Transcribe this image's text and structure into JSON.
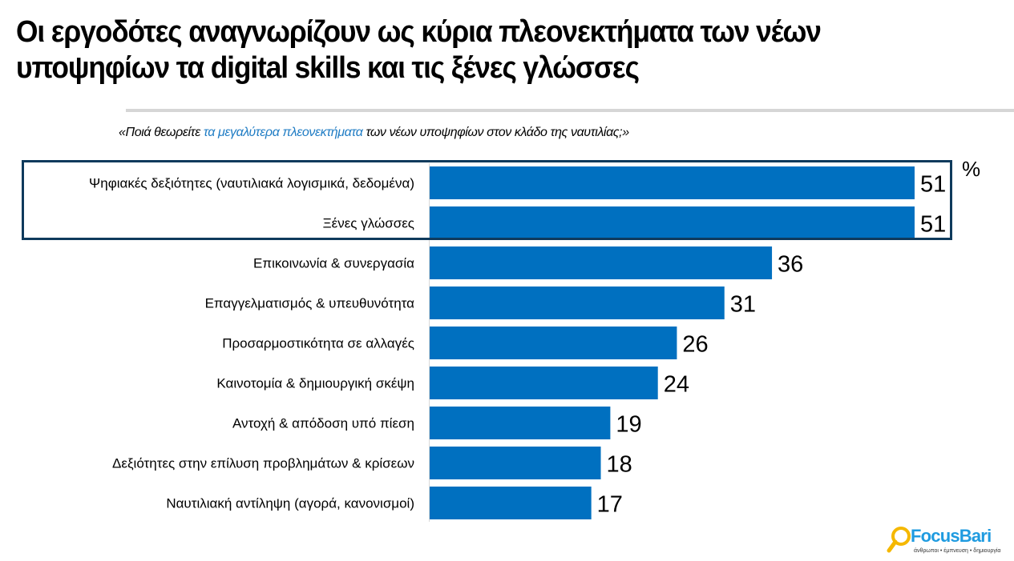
{
  "header": {
    "title_line1": "Οι εργοδότες αναγνωρίζουν ως κύρια πλεονεκτήματα των νέων",
    "title_line2": "υποψηφίων τα digital skills και τις ξένες γλώσσες"
  },
  "question": {
    "prefix": "«Ποιά θεωρείτε ",
    "highlight": "τα μεγαλύτερα πλεονεκτήματα",
    "suffix": " των νέων υποψηφίων στον κλάδο της ναυτιλίας;»",
    "highlight_color": "#1f7cc4"
  },
  "unit_label": "%",
  "logo": {
    "brand": "FocusBari",
    "tagline": "άνθρωποι • έμπνευση • δημιουργία",
    "icon": "magnifier-icon"
  },
  "colors": {
    "bar": "#0070c0",
    "highlight_border": "#0f3a5c",
    "brand_blue": "#1f9be0",
    "brand_orange": "#f5b800"
  },
  "chart_data": {
    "type": "bar",
    "orientation": "horizontal",
    "title": "Οι εργοδότες αναγνωρίζουν ως κύρια πλεονεκτήματα των νέων υποψηφίων τα digital skills και τις ξένες γλώσσες",
    "subtitle": "«Ποιά θεωρείτε τα μεγαλύτερα πλεονεκτήματα των νέων υποψηφίων στον κλάδο της ναυτιλίας;»",
    "xlabel": "",
    "ylabel": "",
    "unit": "%",
    "categories": [
      "Ψηφιακές δεξιότητες (ναυτιλιακά λογισμικά, δεδομένα)",
      "Ξένες γλώσσες",
      "Επικοινωνία & συνεργασία",
      "Επαγγελματισμός & υπευθυνότητα",
      "Προσαρμοστικότητα σε αλλαγές",
      "Καινοτομία & δημιουργική σκέψη",
      "Αντοχή & απόδοση υπό πίεση",
      "Δεξιότητες στην επίλυση προβλημάτων & κρίσεων",
      "Ναυτιλιακή αντίληψη (αγορά, κανονισμοί)"
    ],
    "values": [
      51,
      51,
      36,
      31,
      26,
      24,
      19,
      18,
      17
    ],
    "highlighted_categories": [
      0,
      1
    ],
    "xlim": [
      0,
      51
    ],
    "grid": false,
    "legend": "none",
    "data_labels": true
  }
}
